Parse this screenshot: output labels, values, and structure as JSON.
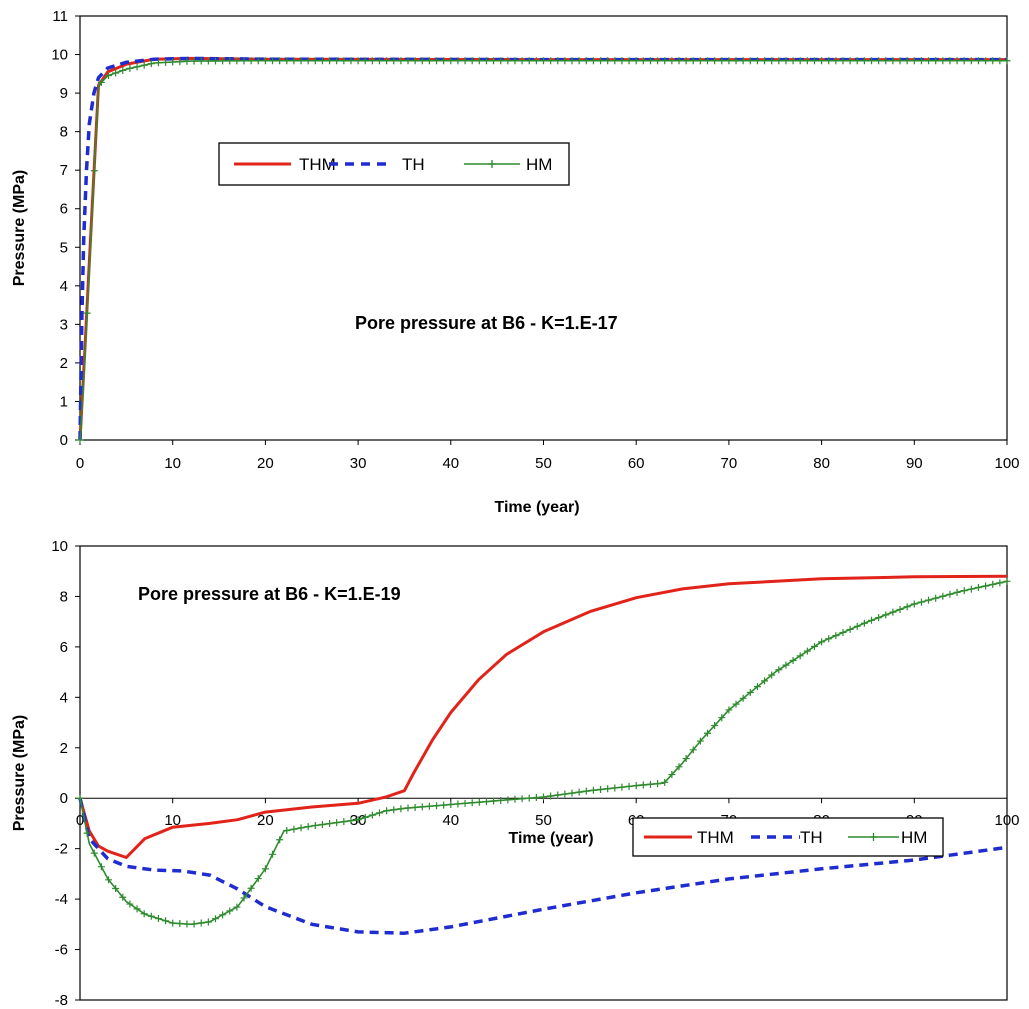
{
  "colors": {
    "THM": "#e2231a",
    "TH": "#1f2ccf",
    "HM": "#2e8b2e"
  },
  "chart_data": [
    {
      "type": "line",
      "annotation": "Pore pressure at B6 - K=1.E-17",
      "xlabel": "Time (year)",
      "ylabel": "Pressure (MPa)",
      "xlim": [
        0,
        100
      ],
      "ylim": [
        0,
        11
      ],
      "xticks": [
        0,
        10,
        20,
        30,
        40,
        50,
        60,
        70,
        80,
        90,
        100
      ],
      "yticks": [
        0,
        1,
        2,
        3,
        4,
        5,
        6,
        7,
        8,
        9,
        10,
        11
      ],
      "grid": false,
      "legend_position": "upper-left",
      "series": [
        {
          "name": "THM",
          "style": "solid",
          "x": [
            0,
            0.5,
            1,
            2,
            3,
            5,
            8,
            12,
            20,
            50,
            100
          ],
          "y": [
            0,
            2.2,
            4.6,
            9.2,
            9.55,
            9.75,
            9.88,
            9.9,
            9.88,
            9.87,
            9.87
          ]
        },
        {
          "name": "TH",
          "style": "dashed",
          "x": [
            0,
            0.2,
            0.4,
            0.7,
            1,
            1.5,
            2,
            3,
            5,
            8,
            12,
            20,
            50,
            100
          ],
          "y": [
            0,
            3.2,
            5.2,
            7.0,
            8.2,
            9.0,
            9.4,
            9.65,
            9.8,
            9.88,
            9.9,
            9.88,
            9.87,
            9.87
          ]
        },
        {
          "name": "HM",
          "style": "plus",
          "x": [
            0,
            0.5,
            1,
            2,
            3,
            5,
            8,
            12,
            20,
            50,
            100
          ],
          "y": [
            0,
            2.0,
            4.4,
            9.2,
            9.45,
            9.62,
            9.78,
            9.83,
            9.84,
            9.84,
            9.84
          ]
        }
      ]
    },
    {
      "type": "line",
      "annotation": "Pore pressure at B6 - K=1.E-19",
      "xlabel": "Time (year)",
      "ylabel": "Pressure (MPa)",
      "xlim": [
        0,
        100
      ],
      "ylim": [
        -8,
        10
      ],
      "xticks": [
        0,
        10,
        20,
        30,
        40,
        50,
        60,
        70,
        80,
        90,
        100
      ],
      "yticks": [
        -8,
        -6,
        -4,
        -2,
        0,
        2,
        4,
        6,
        8,
        10
      ],
      "grid": false,
      "legend_position": "lower-right",
      "series": [
        {
          "name": "THM",
          "style": "solid",
          "x": [
            0,
            1,
            2,
            3,
            5,
            7,
            10,
            14,
            17,
            20,
            25,
            30,
            33,
            35,
            36,
            38,
            40,
            43,
            46,
            50,
            55,
            60,
            65,
            70,
            80,
            90,
            100
          ],
          "y": [
            0,
            -1.3,
            -1.9,
            -2.1,
            -2.35,
            -1.6,
            -1.15,
            -1.0,
            -0.85,
            -0.55,
            -0.35,
            -0.2,
            0.05,
            0.3,
            1.0,
            2.3,
            3.4,
            4.7,
            5.7,
            6.6,
            7.4,
            7.95,
            8.3,
            8.5,
            8.7,
            8.78,
            8.8
          ]
        },
        {
          "name": "TH",
          "style": "dashed",
          "x": [
            0,
            1,
            3,
            5,
            8,
            11,
            14,
            17,
            20,
            25,
            30,
            35,
            40,
            50,
            60,
            70,
            80,
            90,
            100
          ],
          "y": [
            0,
            -1.6,
            -2.4,
            -2.7,
            -2.85,
            -2.88,
            -3.05,
            -3.6,
            -4.3,
            -5.0,
            -5.3,
            -5.35,
            -5.1,
            -4.4,
            -3.75,
            -3.2,
            -2.8,
            -2.45,
            -1.95
          ]
        },
        {
          "name": "HM",
          "style": "plus",
          "x": [
            0,
            1,
            3,
            5,
            7,
            10,
            12,
            14,
            17,
            20,
            22,
            25,
            30,
            33,
            35,
            40,
            45,
            50,
            55,
            60,
            63,
            65,
            67,
            70,
            75,
            80,
            85,
            90,
            95,
            100
          ],
          "y": [
            0,
            -1.8,
            -3.2,
            -4.1,
            -4.6,
            -4.95,
            -5.0,
            -4.9,
            -4.3,
            -2.8,
            -1.3,
            -1.1,
            -0.85,
            -0.5,
            -0.4,
            -0.25,
            -0.1,
            0.05,
            0.3,
            0.5,
            0.6,
            1.4,
            2.3,
            3.5,
            5.0,
            6.2,
            7.0,
            7.7,
            8.2,
            8.6
          ]
        }
      ]
    }
  ]
}
